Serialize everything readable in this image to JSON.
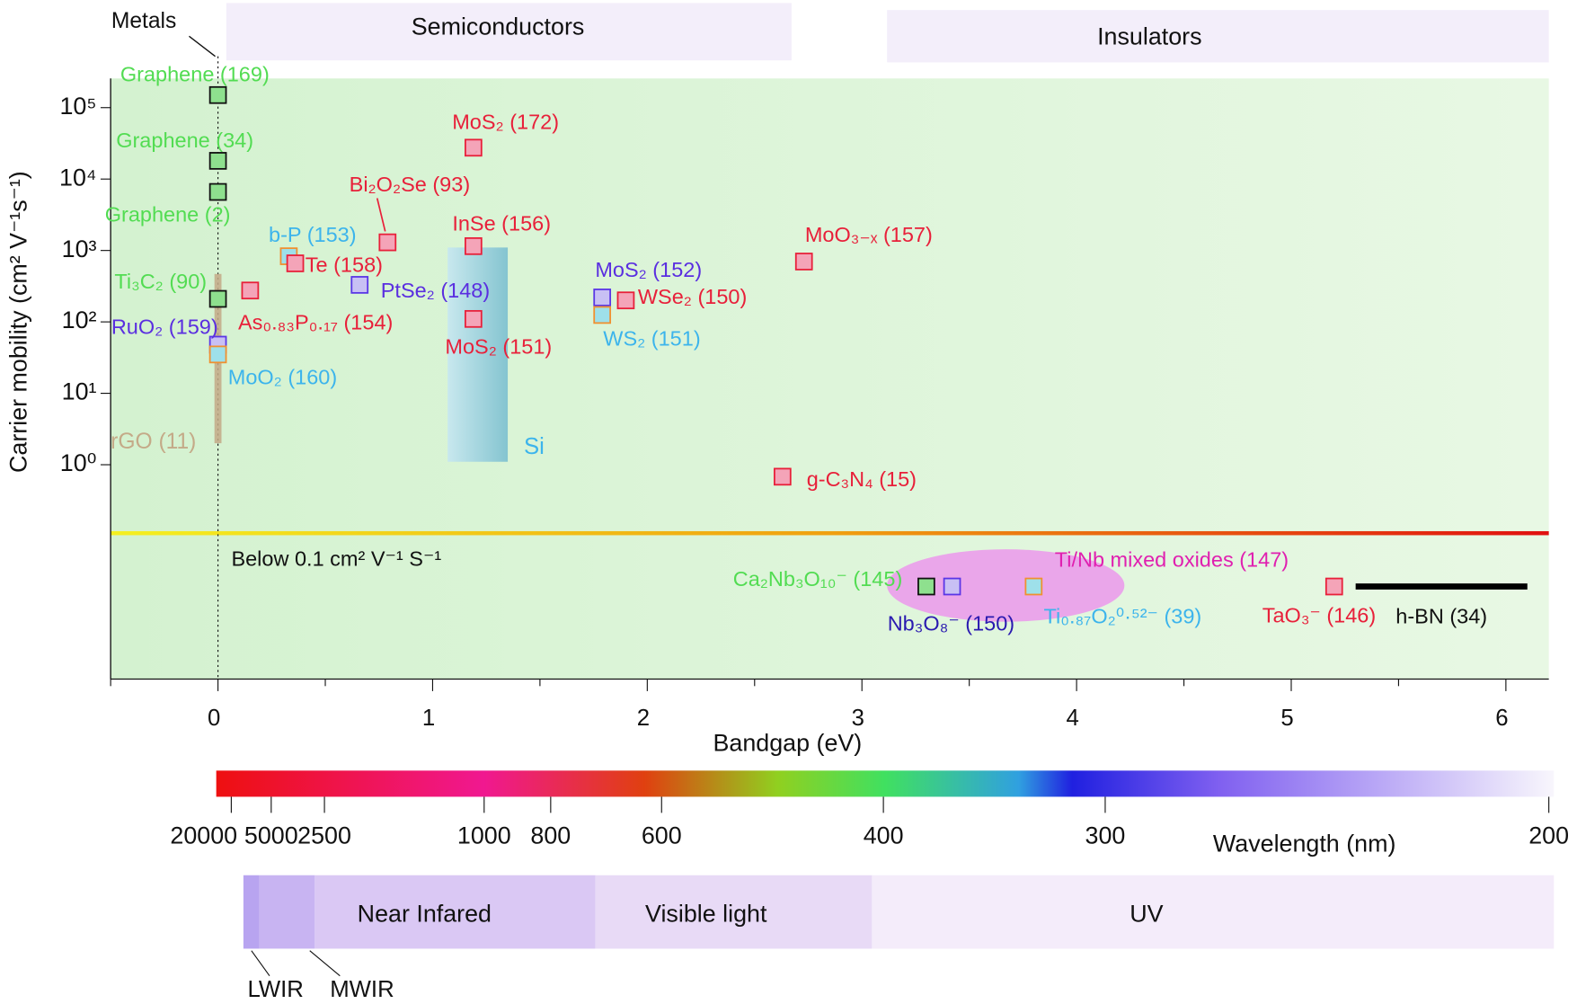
{
  "chart_data": {
    "type": "scatter",
    "x_label": "Bandgap (eV)",
    "y_label": "Carrier mobility (cm² V⁻¹s⁻¹)",
    "y_scale": "log",
    "xlim": [
      -0.5,
      6.2
    ],
    "ylim": [
      0.11,
      240000
    ],
    "xticks": [
      0,
      1,
      2,
      3,
      4,
      5,
      6
    ],
    "xminorticks": [
      -0.5,
      0.5,
      1.5,
      2.5,
      3.5,
      4.5,
      5.5
    ],
    "yticks": [
      {
        "value": 1,
        "label": "10⁰"
      },
      {
        "value": 10,
        "label": "10¹"
      },
      {
        "value": 100,
        "label": "10²"
      },
      {
        "value": 1000,
        "label": "10³"
      },
      {
        "value": 10000,
        "label": "10⁴"
      },
      {
        "value": 100000,
        "label": "10⁵"
      }
    ],
    "regions": {
      "metals": "Metals",
      "semiconductors": "Semiconductors",
      "insulators": "Insulators"
    },
    "points": [
      {
        "label": "Graphene (169)",
        "x": 0,
        "y": 150000,
        "color": "#111111",
        "fill": "#8ee08e",
        "label_color": "#52dc52"
      },
      {
        "label": "Graphene (34)",
        "x": 0,
        "y": 18000,
        "color": "#111111",
        "fill": "#8ee08e",
        "label_color": "#52dc52"
      },
      {
        "label": "Graphene (2)",
        "x": 0,
        "y": 6600,
        "color": "#111111",
        "fill": "#8ee08e",
        "label_color": "#52dc52"
      },
      {
        "label": "Ti₃C₂ (90)",
        "x": 0,
        "y": 210,
        "color": "#111111",
        "fill": "#8ee08e",
        "label_color": "#52dc52"
      },
      {
        "label": "RuO₂ (159)",
        "x": 0,
        "y": 48,
        "color": "#5a36e6",
        "fill": "#c8c0f4",
        "label_color": "#5a2ee0"
      },
      {
        "label": "MoO₂ (160)",
        "x": 0,
        "y": 35,
        "color": "#f09030",
        "fill": "#9ee0ea",
        "label_color": "#3cb4ec"
      },
      {
        "label": "As₀.₈₃P₀.₁₇ (154)",
        "x": 0.15,
        "y": 275,
        "color": "#e8203a",
        "fill": "#f4a4b8",
        "label_color": "#e8203a"
      },
      {
        "label": "b-P (153)",
        "x": 0.33,
        "y": 830,
        "color": "#f09030",
        "fill": "#9ee0ea",
        "label_color": "#3cb4ec"
      },
      {
        "label": "Te (158)",
        "x": 0.36,
        "y": 660,
        "color": "#e8203a",
        "fill": "#f4a4b8",
        "label_color": "#e8203a"
      },
      {
        "label": "PtSe₂ (148)",
        "x": 0.66,
        "y": 330,
        "color": "#5a36e6",
        "fill": "#c8c0f4",
        "label_color": "#5a2ee0"
      },
      {
        "label": "Bi₂O₂Se (93)",
        "x": 0.79,
        "y": 1300,
        "color": "#e8203a",
        "fill": "#f4a4b8",
        "label_color": "#e8203a"
      },
      {
        "label": "MoS₂ (172)",
        "x": 1.19,
        "y": 27500,
        "color": "#e8203a",
        "fill": "#f4a4b8",
        "label_color": "#e8203a"
      },
      {
        "label": "InSe (156)",
        "x": 1.19,
        "y": 1150,
        "color": "#e8203a",
        "fill": "#f4a4b8",
        "label_color": "#e8203a"
      },
      {
        "label": "MoS₂ (151)",
        "x": 1.19,
        "y": 110,
        "color": "#e8203a",
        "fill": "#f4a4b8",
        "label_color": "#e8203a"
      },
      {
        "label": "MoS₂ (152)",
        "x": 1.79,
        "y": 220,
        "color": "#5a36e6",
        "fill": "#c8c0f4",
        "label_color": "#5a2ee0"
      },
      {
        "label": "WS₂ (151)",
        "x": 1.79,
        "y": 125,
        "color": "#f09030",
        "fill": "#9ee0ea",
        "label_color": "#3cb4ec"
      },
      {
        "label": "WSe₂ (150)",
        "x": 1.9,
        "y": 200,
        "color": "#e8203a",
        "fill": "#f4a4b8",
        "label_color": "#e8203a"
      },
      {
        "label": "MoO₃₋ₓ (157)",
        "x": 2.73,
        "y": 700,
        "color": "#e8203a",
        "fill": "#f4a4b8",
        "label_color": "#e8203a"
      },
      {
        "label": "g-C₃N₄ (15)",
        "x": 2.63,
        "y": 0.68,
        "color": "#e8203a",
        "fill": "#f4a4b8",
        "label_color": "#e8203a"
      }
    ],
    "ranges": [
      {
        "label": "rGO (11)",
        "x": 0,
        "y": [
          2,
          470
        ],
        "color": "#c4aa88"
      },
      {
        "label": "Si",
        "x": [
          1.07,
          1.35
        ],
        "y": [
          1.1,
          1100
        ],
        "color": "#8cc8d4",
        "label_color": "#3cb4ec"
      }
    ],
    "below": {
      "label": "Below 0.1 cm² V⁻¹ S⁻¹",
      "group_label": "Ti/Nb mixed oxides (147)",
      "points": [
        {
          "label": "Ca₂Nb₃O₁₀⁻ (145)",
          "x": 3.3,
          "color": "#111111",
          "fill": "#8ee08e",
          "label_color": "#52dc52"
        },
        {
          "label": "Nb₃O₈⁻ (150)",
          "x": 3.42,
          "color": "#5a36e6",
          "fill": "#c8c0f4",
          "label_color": "#2a1ab0"
        },
        {
          "label": "Ti₀.₈₇O₂⁰·⁵²⁻ (39)",
          "x": 3.8,
          "color": "#f09030",
          "fill": "#9ee0ea",
          "label_color": "#3cb4ec"
        },
        {
          "label": "TaO₃⁻ (146)",
          "x": 5.2,
          "color": "#e8203a",
          "fill": "#f4a4b8",
          "label_color": "#e8203a"
        }
      ],
      "line": {
        "label": "h-BN (34)",
        "x": [
          5.3,
          6.1
        ],
        "color": "#000000"
      }
    },
    "wavelength": {
      "label": "Wavelength (nm)",
      "ticks": [
        20000,
        5000,
        2500,
        1000,
        800,
        600,
        400,
        300,
        200
      ]
    },
    "bands": [
      "LWIR",
      "MWIR",
      "Near Infared",
      "Visible light",
      "UV"
    ]
  }
}
